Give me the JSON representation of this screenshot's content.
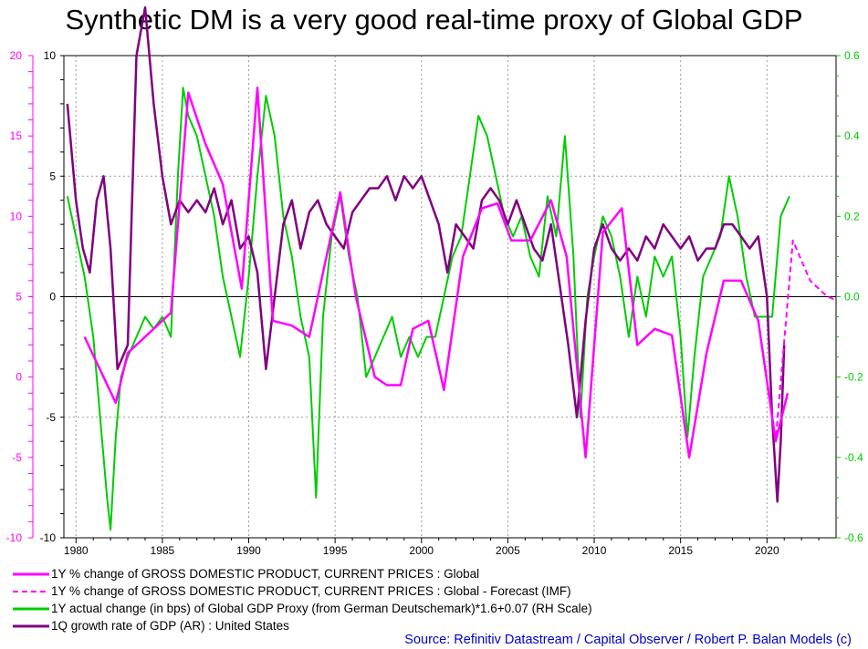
{
  "colors": {
    "global_gdp": "#ff00ff",
    "forecast": "#ff00ff",
    "proxy": "#00cc00",
    "us_gdp": "#800080",
    "source": "#0000cc",
    "grid": "#999999"
  },
  "source_note": "Source: Refinitiv Datastream / Capital Observer / Robert P. Balan Models (c)",
  "chart_data": {
    "type": "line",
    "title": "Synthetic DM is a very good real-time proxy of Global GDP",
    "x_ticks": [
      "1980",
      "1985",
      "1990",
      "1995",
      "2000",
      "2005",
      "2010",
      "2015",
      "2020"
    ],
    "xlim": [
      1979.3,
      2024.0
    ],
    "axes": {
      "left_outer": {
        "color": "#ff00ff",
        "ylim": [
          -10,
          20
        ],
        "ticks": [
          "20",
          "15",
          "10",
          "5",
          "0",
          "-5",
          "-10"
        ]
      },
      "left_inner": {
        "color": "#000000",
        "ylim": [
          -10,
          10
        ],
        "ticks": [
          "10",
          "5",
          "0",
          "-5",
          "-10"
        ]
      },
      "right": {
        "color": "#00cc00",
        "ylim": [
          -0.6,
          0.6
        ],
        "ticks": [
          "0.6",
          "0.4",
          "0.2",
          "0.0",
          "-0.2",
          "-0.4",
          "-0.6"
        ]
      }
    },
    "grid": true,
    "zero_line": true,
    "series": [
      {
        "name": "1Y % change of GROSS DOMESTIC PRODUCT, CURRENT PRICES : Global",
        "axis": "left_outer",
        "style": "solid",
        "x": [
          1980.5,
          1982.3,
          1983.0,
          1985.5,
          1986.5,
          1987.5,
          1988.5,
          1989.6,
          1990.5,
          1991.4,
          1992.5,
          1993.5,
          1995.3,
          1996.2,
          1997.3,
          1998.0,
          1998.8,
          1999.5,
          2000.4,
          2001.3,
          2002.4,
          2003.5,
          2004.4,
          2005.2,
          2006.3,
          2007.5,
          2008.4,
          2009.5,
          2010.5,
          2011.6,
          2012.5,
          2013.5,
          2014.5,
          2015.5,
          2016.5,
          2017.5,
          2018.5,
          2019.5,
          2020.5,
          2021.2
        ],
        "values": [
          2.5,
          -1.6,
          1.5,
          4.0,
          17.7,
          14.5,
          12.0,
          5.5,
          18.0,
          3.5,
          3.2,
          2.5,
          11.5,
          5.0,
          0.0,
          -0.5,
          -0.5,
          3.0,
          3.5,
          -0.8,
          7.5,
          10.5,
          10.8,
          8.5,
          8.5,
          11.0,
          7.5,
          -5.0,
          9.0,
          10.5,
          2.0,
          3.0,
          2.6,
          -5.0,
          1.5,
          6.0,
          6.0,
          3.5,
          -4.0,
          -1.0
        ]
      },
      {
        "name": "1Y % change of GROSS DOMESTIC PRODUCT, CURRENT PRICES : Global - Forecast (IMF)",
        "axis": "left_outer",
        "style": "dashed",
        "x": [
          2019.5,
          2020.5,
          2021.5,
          2022.5,
          2023.5,
          2024.0
        ],
        "values": [
          3.5,
          -4.0,
          8.5,
          6.0,
          5.0,
          4.8
        ]
      },
      {
        "name": "1Y actual change (in bps) of Global GDP Proxy (from German Deutschemark)*1.6+0.07 (RH Scale)",
        "axis": "right",
        "style": "solid",
        "x": [
          1979.5,
          1980.0,
          1980.5,
          1981.0,
          1981.5,
          1981.8,
          1982.0,
          1982.3,
          1982.6,
          1983.0,
          1983.5,
          1984.0,
          1984.5,
          1985.0,
          1985.5,
          1985.9,
          1986.2,
          1986.5,
          1987.0,
          1987.5,
          1988.0,
          1988.5,
          1989.0,
          1989.5,
          1990.0,
          1990.5,
          1991.0,
          1991.5,
          1992.0,
          1992.5,
          1993.0,
          1993.5,
          1993.9,
          1994.3,
          1994.8,
          1995.3,
          1995.8,
          1996.3,
          1996.8,
          1997.3,
          1997.8,
          1998.3,
          1998.8,
          1999.3,
          1999.8,
          2000.3,
          2000.8,
          2001.3,
          2001.8,
          2002.3,
          2002.8,
          2003.3,
          2003.8,
          2004.3,
          2004.8,
          2005.3,
          2005.8,
          2006.3,
          2006.8,
          2007.3,
          2007.8,
          2008.3,
          2008.8,
          2009.2,
          2009.6,
          2010.0,
          2010.5,
          2011.0,
          2011.5,
          2012.0,
          2012.5,
          2013.0,
          2013.5,
          2014.0,
          2014.5,
          2015.0,
          2015.4,
          2015.8,
          2016.3,
          2016.8,
          2017.3,
          2017.8,
          2018.3,
          2018.8,
          2019.3,
          2019.8,
          2020.3,
          2020.8,
          2021.3
        ],
        "values": [
          0.25,
          0.15,
          0.05,
          -0.1,
          -0.35,
          -0.5,
          -0.58,
          -0.35,
          -0.2,
          -0.15,
          -0.1,
          -0.05,
          -0.08,
          -0.05,
          -0.1,
          0.3,
          0.52,
          0.45,
          0.4,
          0.3,
          0.2,
          0.05,
          -0.05,
          -0.15,
          0.05,
          0.3,
          0.5,
          0.4,
          0.2,
          0.1,
          -0.05,
          -0.15,
          -0.5,
          -0.05,
          0.15,
          0.25,
          0.1,
          0.0,
          -0.2,
          -0.15,
          -0.1,
          -0.05,
          -0.15,
          -0.1,
          -0.15,
          -0.1,
          -0.1,
          0.0,
          0.1,
          0.15,
          0.3,
          0.45,
          0.4,
          0.3,
          0.2,
          0.15,
          0.2,
          0.1,
          0.05,
          0.25,
          0.15,
          0.4,
          0.1,
          -0.3,
          0.0,
          0.1,
          0.2,
          0.15,
          0.05,
          -0.1,
          0.05,
          -0.05,
          0.1,
          0.05,
          0.1,
          -0.1,
          -0.35,
          -0.15,
          0.05,
          0.1,
          0.15,
          0.3,
          0.2,
          0.05,
          -0.05,
          -0.05,
          -0.05,
          0.2,
          0.25
        ]
      },
      {
        "name": "1Q growth rate of GDP (AR) : United States",
        "axis": "left_inner",
        "style": "solid",
        "x": [
          1979.5,
          1980.0,
          1980.4,
          1980.8,
          1981.2,
          1981.6,
          1982.0,
          1982.4,
          1983.0,
          1983.5,
          1984.0,
          1984.5,
          1985.0,
          1985.5,
          1986.0,
          1986.5,
          1987.0,
          1987.5,
          1988.0,
          1988.5,
          1989.0,
          1989.5,
          1990.0,
          1990.5,
          1991.0,
          1991.5,
          1992.0,
          1992.5,
          1993.0,
          1993.5,
          1994.0,
          1994.5,
          1995.0,
          1995.5,
          1996.0,
          1996.5,
          1997.0,
          1997.5,
          1998.0,
          1998.5,
          1999.0,
          1999.5,
          2000.0,
          2000.5,
          2001.0,
          2001.5,
          2002.0,
          2002.5,
          2003.0,
          2003.5,
          2004.0,
          2004.5,
          2005.0,
          2005.5,
          2006.0,
          2006.5,
          2007.0,
          2007.5,
          2008.0,
          2008.5,
          2009.0,
          2009.5,
          2010.0,
          2010.5,
          2011.0,
          2011.5,
          2012.0,
          2012.5,
          2013.0,
          2013.5,
          2014.0,
          2014.5,
          2015.0,
          2015.5,
          2016.0,
          2016.5,
          2017.0,
          2017.5,
          2018.0,
          2018.5,
          2019.0,
          2019.5,
          2020.0,
          2020.3,
          2020.6,
          2020.8,
          2021.0
        ],
        "values": [
          8.0,
          4.0,
          2.0,
          1.0,
          4.0,
          5.0,
          2.0,
          -3.0,
          -2.0,
          10.0,
          12.0,
          8.0,
          5.0,
          3.0,
          4.0,
          3.5,
          4.0,
          3.5,
          4.5,
          3.0,
          4.0,
          2.0,
          2.5,
          1.0,
          -3.0,
          0.0,
          3.0,
          4.0,
          2.0,
          3.5,
          4.0,
          3.0,
          2.5,
          2.0,
          3.5,
          4.0,
          4.5,
          4.5,
          5.0,
          4.0,
          5.0,
          4.5,
          5.0,
          4.0,
          3.0,
          1.0,
          3.0,
          2.5,
          2.0,
          4.0,
          4.5,
          4.0,
          3.0,
          4.0,
          3.0,
          2.0,
          1.5,
          3.0,
          0.5,
          -2.0,
          -5.0,
          -1.0,
          2.0,
          3.0,
          2.0,
          1.5,
          2.0,
          1.5,
          2.5,
          2.0,
          3.0,
          2.5,
          2.0,
          2.5,
          1.5,
          2.0,
          2.0,
          3.0,
          3.0,
          2.5,
          2.0,
          2.5,
          0.0,
          -5.0,
          -8.5,
          -6.0,
          -2.0
        ]
      }
    ]
  }
}
